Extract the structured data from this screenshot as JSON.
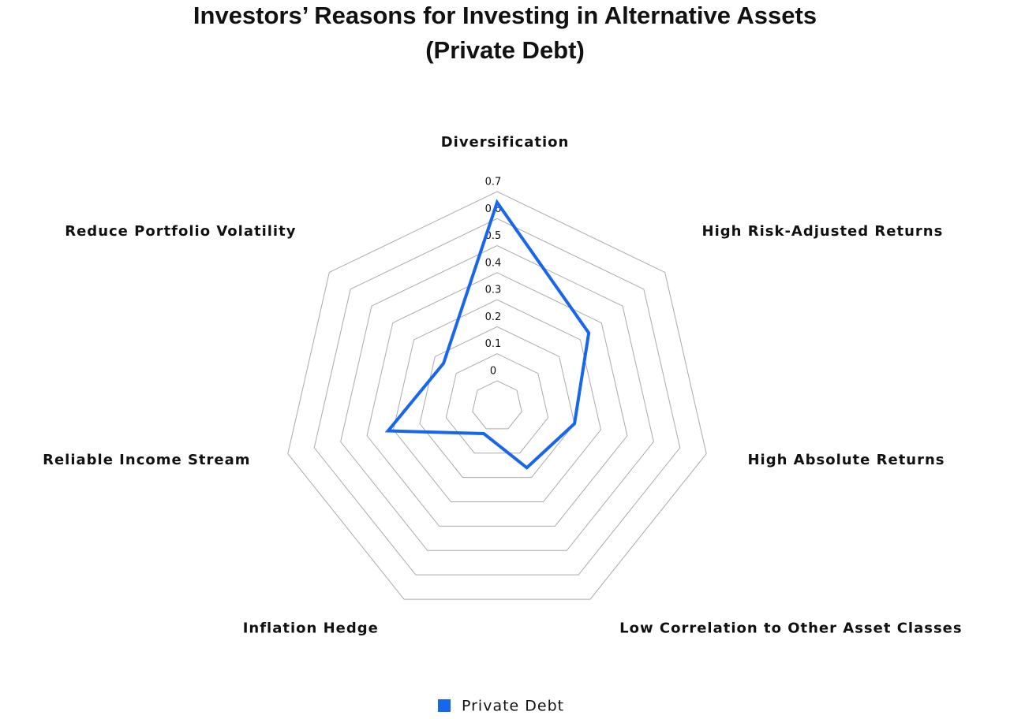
{
  "chart_data": {
    "type": "radar",
    "title": "Investors’ Reasons for Investing in Alternative Assets",
    "subtitle": "(Private Debt)",
    "categories": [
      "Diversification",
      "High Risk-Adjusted Returns",
      "High Absolute Returns",
      "Low Correlation to Other Asset Classes",
      "Inflation Hedge",
      "Reliable Income Stream",
      "Reduce Portfolio Volatility"
    ],
    "series": [
      {
        "name": "Private Debt",
        "color": "#1766ee",
        "values": [
          0.66,
          0.34,
          0.2,
          0.16,
          0.02,
          0.32,
          0.16
        ]
      }
    ],
    "ylim": [
      0,
      0.7
    ],
    "yticks": [
      0,
      0.1,
      0.2,
      0.3,
      0.4,
      0.5,
      0.6,
      0.7
    ],
    "grid": true
  }
}
